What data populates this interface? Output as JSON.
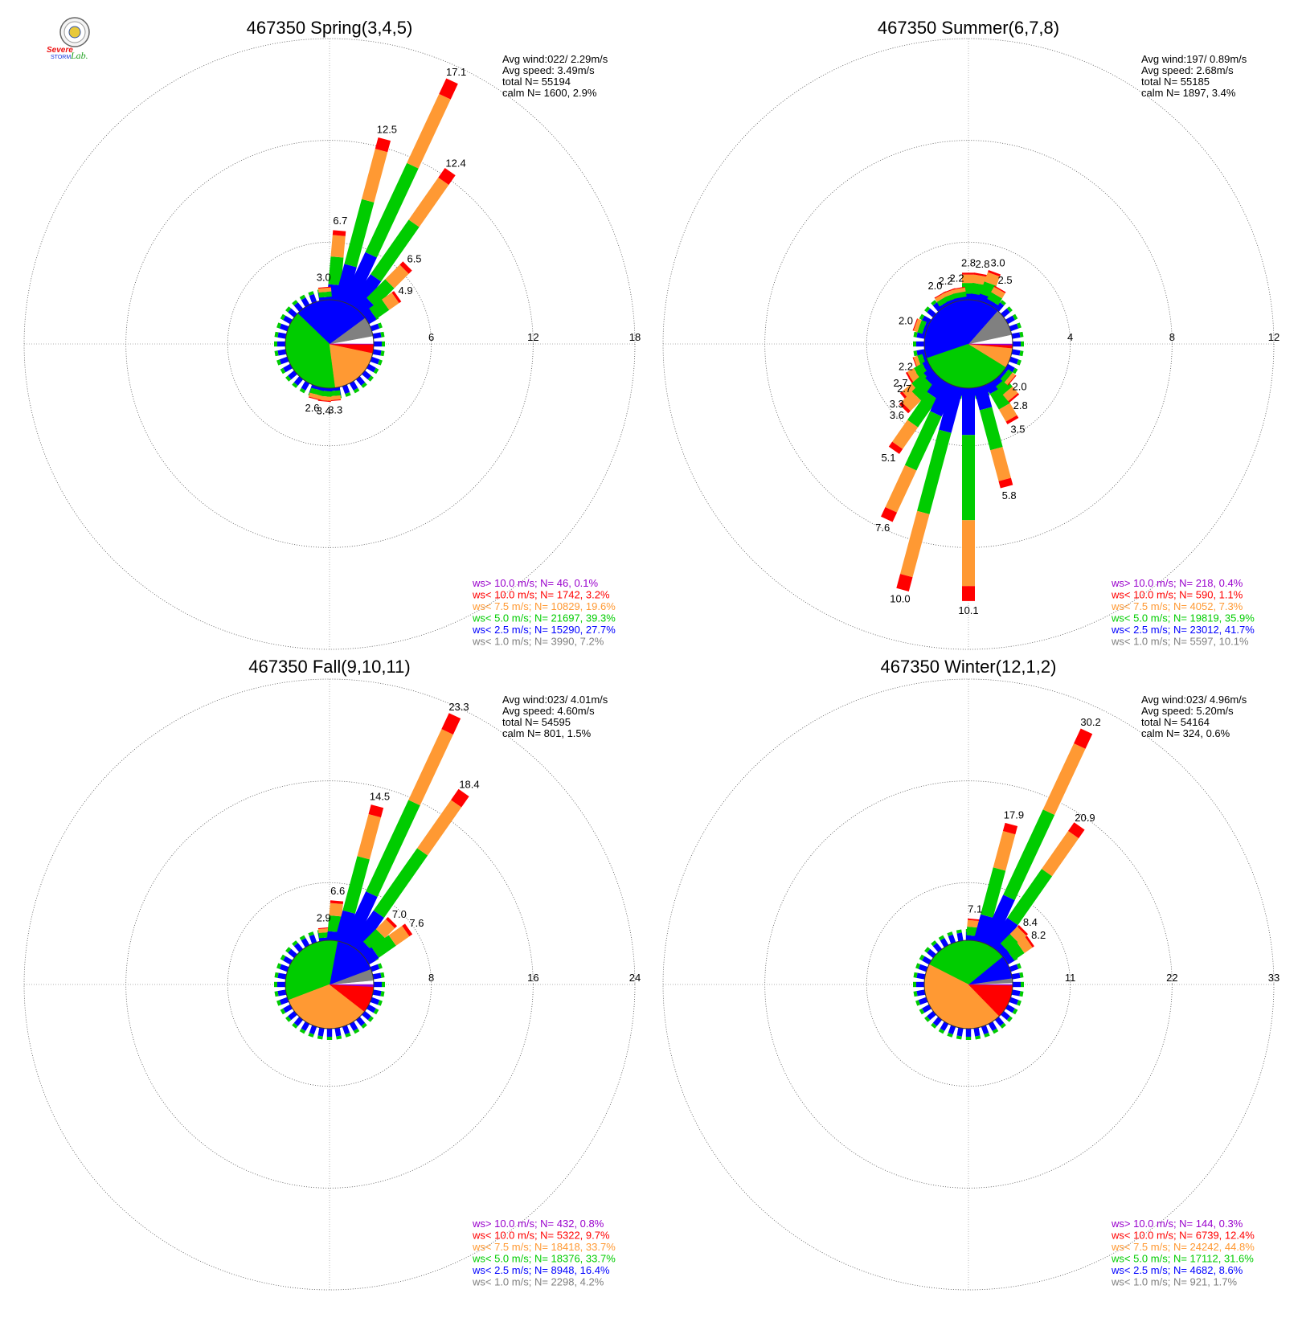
{
  "logo": {
    "sev": "Severe",
    "storm": "STORM",
    "lab": "Lab."
  },
  "colors": {
    "calm": "#ffffff",
    "gray": "#808080",
    "blue": "#0000ff",
    "green": "#00cc00",
    "orange": "#ff9933",
    "red": "#ff0000",
    "purple": "#9900cc"
  },
  "chart_data": [
    {
      "type": "wind-rose",
      "title": "467350 Spring(3,4,5)",
      "rings": [
        6,
        12,
        18
      ],
      "ring_labels": [
        "6",
        "12",
        "18"
      ],
      "stats": [
        "Avg wind:022/ 2.29m/s",
        "Avg speed: 3.49m/s",
        "total N=       55194",
        "calm N=   1600,   2.9%"
      ],
      "bars_approx": [
        {
          "dir": 5,
          "value": 6.7
        },
        {
          "dir": 15,
          "value": 12.5
        },
        {
          "dir": 25,
          "value": 17.1
        },
        {
          "dir": 35,
          "value": 12.4
        },
        {
          "dir": 45,
          "value": 6.5
        },
        {
          "dir": 55,
          "value": 4.9
        },
        {
          "dir": 175,
          "value": 3.3
        },
        {
          "dir": 185,
          "value": 3.4
        },
        {
          "dir": 195,
          "value": 2.6
        },
        {
          "dir": 355,
          "value": 3.0
        }
      ],
      "bar_labels": [
        {
          "dir": 355,
          "text": "3.0"
        },
        {
          "dir": 5,
          "text": "6.7"
        },
        {
          "dir": 15,
          "text": "12.5"
        },
        {
          "dir": 25,
          "text": "17.1"
        },
        {
          "dir": 35,
          "text": "12.4"
        },
        {
          "dir": 45,
          "text": "6.5"
        },
        {
          "dir": 55,
          "text": "4.9"
        },
        {
          "dir": 175,
          "text": "3.3"
        },
        {
          "dir": 185,
          "text": "3.4"
        },
        {
          "dir": 195,
          "text": "2.6"
        }
      ],
      "pie": [
        2.9,
        7.2,
        27.7,
        39.3,
        19.6,
        3.2,
        0.1
      ],
      "legend": [
        {
          "text": "ws> 10.0 m/s; N=    46,  0.1%",
          "color": "#9900cc"
        },
        {
          "text": "ws< 10.0 m/s; N=  1742,  3.2%",
          "color": "#ff0000"
        },
        {
          "text": "ws<  7.5 m/s; N= 10829, 19.6%",
          "color": "#ff9933"
        },
        {
          "text": "ws<  5.0 m/s; N= 21697, 39.3%",
          "color": "#00cc00"
        },
        {
          "text": "ws<  2.5 m/s; N= 15290, 27.7%",
          "color": "#0000ff"
        },
        {
          "text": "ws<  1.0 m/s; N=  3990,  7.2%",
          "color": "#808080"
        }
      ]
    },
    {
      "type": "wind-rose",
      "title": "467350 Summer(6,7,8)",
      "rings": [
        4,
        8,
        12
      ],
      "ring_labels": [
        "4",
        "8",
        "12"
      ],
      "stats": [
        "Avg wind:197/ 0.89m/s",
        "Avg speed: 2.68m/s",
        "total N=       55185",
        "calm N=   1897,   3.4%"
      ],
      "bars_approx": [
        {
          "dir": 0,
          "value": 2.8
        },
        {
          "dir": 10,
          "value": 2.8
        },
        {
          "dir": 20,
          "value": 3.0
        },
        {
          "dir": 30,
          "value": 2.5
        },
        {
          "dir": 330,
          "value": 2.0
        },
        {
          "dir": 340,
          "value": 2.2
        },
        {
          "dir": 350,
          "value": 2.2
        },
        {
          "dir": 290,
          "value": 2.0
        },
        {
          "dir": 250,
          "value": 2.2
        },
        {
          "dir": 240,
          "value": 2.7
        },
        {
          "dir": 235,
          "value": 2.7
        },
        {
          "dir": 230,
          "value": 3.3
        },
        {
          "dir": 225,
          "value": 3.6
        },
        {
          "dir": 215,
          "value": 5.1
        },
        {
          "dir": 205,
          "value": 7.6
        },
        {
          "dir": 195,
          "value": 10.0
        },
        {
          "dir": 180,
          "value": 10.1
        },
        {
          "dir": 165,
          "value": 5.8
        },
        {
          "dir": 150,
          "value": 3.5
        },
        {
          "dir": 140,
          "value": 2.8
        },
        {
          "dir": 130,
          "value": 2.0
        }
      ],
      "bar_labels": [
        {
          "dir": 330,
          "text": "2.0"
        },
        {
          "dir": 340,
          "text": "2.2"
        },
        {
          "dir": 350,
          "text": "2.2"
        },
        {
          "dir": 0,
          "text": "2.8"
        },
        {
          "dir": 10,
          "text": "2.8"
        },
        {
          "dir": 20,
          "text": "3.0"
        },
        {
          "dir": 30,
          "text": "2.5"
        },
        {
          "dir": 290,
          "text": "2.0"
        },
        {
          "dir": 250,
          "text": "2.2"
        },
        {
          "dir": 240,
          "text": "2.7"
        },
        {
          "dir": 235,
          "text": "2.7"
        },
        {
          "dir": 230,
          "text": "3.3"
        },
        {
          "dir": 225,
          "text": "3.6"
        },
        {
          "dir": 215,
          "text": "5.1"
        },
        {
          "dir": 205,
          "text": "7.6"
        },
        {
          "dir": 195,
          "text": "10.0"
        },
        {
          "dir": 180,
          "text": "10.1"
        },
        {
          "dir": 165,
          "text": "5.8"
        },
        {
          "dir": 150,
          "text": "3.5"
        },
        {
          "dir": 140,
          "text": "2.8"
        },
        {
          "dir": 130,
          "text": "2.0"
        }
      ],
      "pie": [
        3.4,
        10.1,
        41.7,
        35.9,
        7.3,
        1.1,
        0.4
      ],
      "legend": [
        {
          "text": "ws> 10.0 m/s; N=   218,  0.4%",
          "color": "#9900cc"
        },
        {
          "text": "ws< 10.0 m/s; N=   590,  1.1%",
          "color": "#ff0000"
        },
        {
          "text": "ws<  7.5 m/s; N=  4052,  7.3%",
          "color": "#ff9933"
        },
        {
          "text": "ws<  5.0 m/s; N= 19819, 35.9%",
          "color": "#00cc00"
        },
        {
          "text": "ws<  2.5 m/s; N= 23012, 41.7%",
          "color": "#0000ff"
        },
        {
          "text": "ws<  1.0 m/s; N=  5597, 10.1%",
          "color": "#808080"
        }
      ]
    },
    {
      "type": "wind-rose",
      "title": "467350 Fall(9,10,11)",
      "rings": [
        8,
        16,
        24
      ],
      "ring_labels": [
        "8",
        "16",
        "24"
      ],
      "stats": [
        "Avg wind:023/ 4.01m/s",
        "Avg speed: 4.60m/s",
        "total N=       54595",
        "calm N=    801,   1.5%"
      ],
      "bars_approx": [
        {
          "dir": 355,
          "value": 2.9
        },
        {
          "dir": 5,
          "value": 6.6
        },
        {
          "dir": 15,
          "value": 14.5
        },
        {
          "dir": 25,
          "value": 23.3
        },
        {
          "dir": 35,
          "value": 18.4
        },
        {
          "dir": 45,
          "value": 7.0
        },
        {
          "dir": 55,
          "value": 7.6
        }
      ],
      "bar_labels": [
        {
          "dir": 355,
          "text": "2.9"
        },
        {
          "dir": 5,
          "text": "6.6"
        },
        {
          "dir": 15,
          "text": "14.5"
        },
        {
          "dir": 25,
          "text": "23.3"
        },
        {
          "dir": 35,
          "text": "18.4"
        },
        {
          "dir": 45,
          "text": "7.0"
        },
        {
          "dir": 55,
          "text": "7.6"
        }
      ],
      "pie": [
        1.5,
        4.2,
        16.4,
        33.7,
        33.7,
        9.7,
        0.8
      ],
      "legend": [
        {
          "text": "ws> 10.0 m/s; N=   432,  0.8%",
          "color": "#9900cc"
        },
        {
          "text": "ws< 10.0 m/s; N=  5322,  9.7%",
          "color": "#ff0000"
        },
        {
          "text": "ws<  7.5 m/s; N= 18418, 33.7%",
          "color": "#ff9933"
        },
        {
          "text": "ws<  5.0 m/s; N= 18376, 33.7%",
          "color": "#00cc00"
        },
        {
          "text": "ws<  2.5 m/s; N=  8948, 16.4%",
          "color": "#0000ff"
        },
        {
          "text": "ws<  1.0 m/s; N=  2298,  4.2%",
          "color": "#808080"
        }
      ]
    },
    {
      "type": "wind-rose",
      "title": "467350 Winter(12,1,2)",
      "rings": [
        11,
        22,
        33
      ],
      "ring_labels": [
        "11",
        "22",
        "33"
      ],
      "stats": [
        "Avg wind:023/ 4.96m/s",
        "Avg speed: 5.20m/s",
        "total N=       54164",
        "calm N=    324,   0.6%"
      ],
      "bars_approx": [
        {
          "dir": 5,
          "value": 7.1
        },
        {
          "dir": 15,
          "value": 17.9
        },
        {
          "dir": 25,
          "value": 30.2
        },
        {
          "dir": 35,
          "value": 20.9
        },
        {
          "dir": 45,
          "value": 8.4
        },
        {
          "dir": 55,
          "value": 8.2
        }
      ],
      "bar_labels": [
        {
          "dir": 5,
          "text": "7.1"
        },
        {
          "dir": 15,
          "text": "17.9"
        },
        {
          "dir": 25,
          "text": "30.2"
        },
        {
          "dir": 35,
          "text": "20.9"
        },
        {
          "dir": 45,
          "text": "8.4"
        },
        {
          "dir": 55,
          "text": "8.2"
        }
      ],
      "pie": [
        0.6,
        1.7,
        8.6,
        31.6,
        44.8,
        12.4,
        0.3
      ],
      "legend": [
        {
          "text": "ws> 10.0 m/s; N=   144,  0.3%",
          "color": "#9900cc"
        },
        {
          "text": "ws< 10.0 m/s; N=  6739, 12.4%",
          "color": "#ff0000"
        },
        {
          "text": "ws<  7.5 m/s; N= 24242, 44.8%",
          "color": "#ff9933"
        },
        {
          "text": "ws<  5.0 m/s; N= 17112, 31.6%",
          "color": "#00cc00"
        },
        {
          "text": "ws<  2.5 m/s; N=  4682,  8.6%",
          "color": "#0000ff"
        },
        {
          "text": "ws<  1.0 m/s; N=   921,  1.7%",
          "color": "#808080"
        }
      ]
    }
  ]
}
